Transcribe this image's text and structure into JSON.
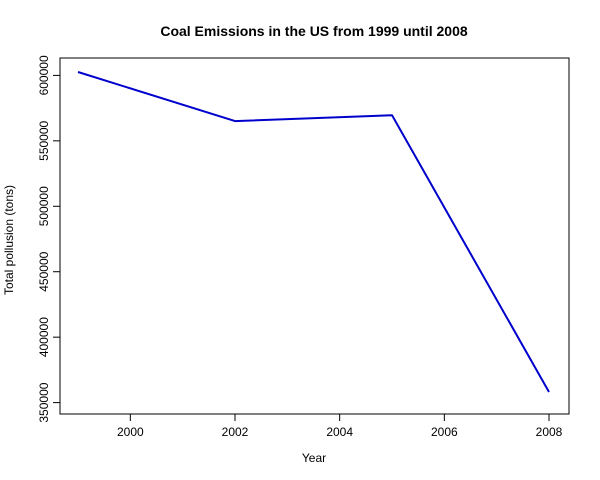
{
  "chart_data": {
    "type": "line",
    "title": "Coal Emissions in the US from 1999 until 2008",
    "xlabel": "Year",
    "ylabel": "Total pollusion (tons)",
    "x": [
      1999,
      2002,
      2005,
      2008
    ],
    "series": [
      {
        "values": [
          602600,
          565100,
          569600,
          358100
        ],
        "color": "#0000cc"
      }
    ],
    "xlim": [
      1999,
      2008
    ],
    "ylim": [
      358100,
      602600
    ],
    "xticks": [
      2000,
      2002,
      2004,
      2006,
      2008
    ],
    "yticks": [
      350000,
      400000,
      450000,
      500000,
      550000,
      600000
    ],
    "grid": false,
    "legend": "none"
  }
}
